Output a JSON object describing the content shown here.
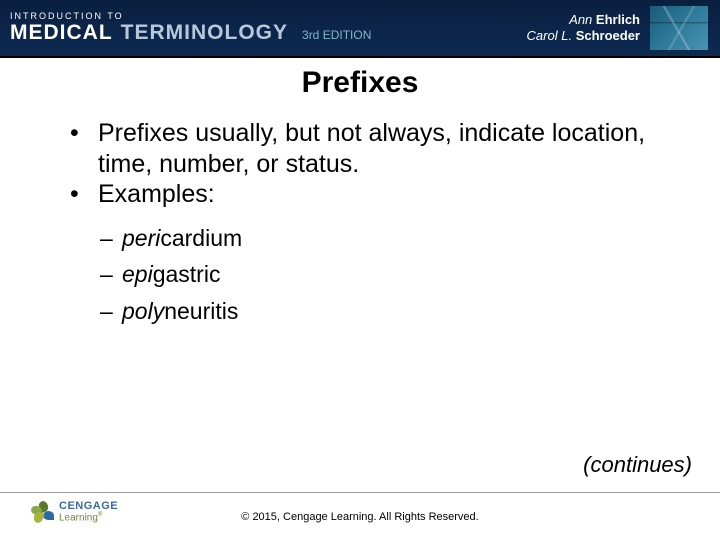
{
  "header": {
    "intro": "INTRODUCTION TO",
    "title_bold": "MEDICAL",
    "title_light": "TERMINOLOGY",
    "edition": "3rd EDITION",
    "author1_first": "Ann",
    "author1_last": "Ehrlich",
    "author2_first": "Carol L.",
    "author2_last": "Schroeder"
  },
  "slide": {
    "title": "Prefixes",
    "bullets": [
      "Prefixes usually, but not always, indicate location, time, number, or status.",
      "Examples:"
    ],
    "examples": [
      {
        "prefix": "peri",
        "rest": "cardium"
      },
      {
        "prefix": "epi",
        "rest": "gastric"
      },
      {
        "prefix": "poly",
        "rest": "neuritis"
      }
    ],
    "continues": "(continues)"
  },
  "footer": {
    "brand_top": "CENGAGE",
    "brand_bottom": "Learning",
    "copyright": "© 2015, Cengage Learning. All Rights Reserved."
  },
  "style": {
    "header_bg_top": "#0a1f3f",
    "header_bg_bottom": "#0d2a52",
    "terminology_color": "#b8c8dc",
    "edition_color": "#7fb8c8",
    "title_fontsize": 30,
    "body_fontsize": 25,
    "sub_fontsize": 23,
    "continues_fontsize": 22,
    "copyright_fontsize": 11
  }
}
